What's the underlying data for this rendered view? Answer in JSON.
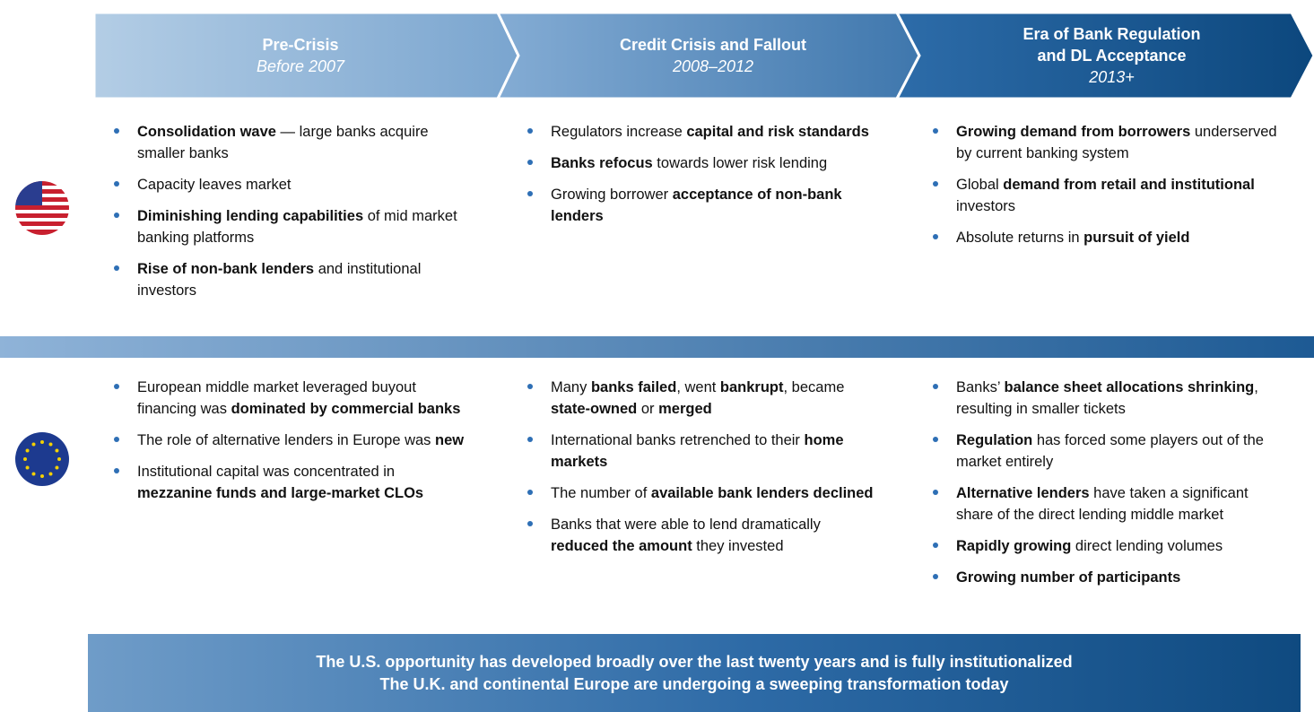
{
  "phases": [
    {
      "title": [
        "Pre-Crisis"
      ],
      "period": "Before 2007"
    },
    {
      "title": [
        "Credit Crisis and Fallout"
      ],
      "period": "2008–2012"
    },
    {
      "title": [
        "Era of Bank Regulation",
        "and DL Acceptance"
      ],
      "period": "2013+"
    }
  ],
  "regions": [
    {
      "columns": [
        [
          [
            {
              "text": "Consolidation wave",
              "bold": true
            },
            {
              "text": " — large banks acquire smaller banks"
            }
          ],
          [
            {
              "text": "Capacity leaves market"
            }
          ],
          [
            {
              "text": "Diminishing lending capabilities",
              "bold": true
            },
            {
              "text": " of mid market banking platforms"
            }
          ],
          [
            {
              "text": "Rise of non-bank lenders",
              "bold": true
            },
            {
              "text": " and institutional investors"
            }
          ]
        ],
        [
          [
            {
              "text": "Regulators increase "
            },
            {
              "text": "capital and risk standards",
              "bold": true
            }
          ],
          [
            {
              "text": "Banks refocus",
              "bold": true
            },
            {
              "text": " towards lower risk lending"
            }
          ],
          [
            {
              "text": "Growing borrower "
            },
            {
              "text": "acceptance of non-bank lenders",
              "bold": true
            }
          ]
        ],
        [
          [
            {
              "text": "Growing demand from borrowers",
              "bold": true
            },
            {
              "text": " underserved by current banking system"
            }
          ],
          [
            {
              "text": "Global "
            },
            {
              "text": "demand from retail and institutional",
              "bold": true
            },
            {
              "text": " investors"
            }
          ],
          [
            {
              "text": "Absolute returns in "
            },
            {
              "text": "pursuit of yield",
              "bold": true
            }
          ]
        ]
      ]
    },
    {
      "columns": [
        [
          [
            {
              "text": "European middle market leveraged buyout financing was "
            },
            {
              "text": "dominated by commercial banks",
              "bold": true
            }
          ],
          [
            {
              "text": "The role of alternative lenders in Europe was "
            },
            {
              "text": "new",
              "bold": true
            }
          ],
          [
            {
              "text": "Institutional capital was concentrated in "
            },
            {
              "text": "mezzanine funds and large-market CLOs",
              "bold": true
            }
          ]
        ],
        [
          [
            {
              "text": "Many "
            },
            {
              "text": "banks failed",
              "bold": true
            },
            {
              "text": ", went "
            },
            {
              "text": "bankrupt",
              "bold": true
            },
            {
              "text": ", became "
            },
            {
              "text": "state-owned",
              "bold": true
            },
            {
              "text": " or "
            },
            {
              "text": "merged",
              "bold": true
            }
          ],
          [
            {
              "text": "International banks retrenched to their "
            },
            {
              "text": "home markets",
              "bold": true
            }
          ],
          [
            {
              "text": "The number of "
            },
            {
              "text": "available bank lenders declined",
              "bold": true
            }
          ],
          [
            {
              "text": "Banks that were able to lend dramatically "
            },
            {
              "text": "reduced the amount",
              "bold": true
            },
            {
              "text": " they invested"
            }
          ]
        ],
        [
          [
            {
              "text": "Banks’ "
            },
            {
              "text": "balance sheet allocations shrinking",
              "bold": true
            },
            {
              "text": ", resulting in smaller tickets"
            }
          ],
          [
            {
              "text": "Regulation",
              "bold": true
            },
            {
              "text": " has forced some players out of the market entirely"
            }
          ],
          [
            {
              "text": "Alternative lenders",
              "bold": true
            },
            {
              "text": " have taken a significant share of the direct lending middle market"
            }
          ],
          [
            {
              "text": "Rapidly growing",
              "bold": true
            },
            {
              "text": " direct lending volumes"
            }
          ],
          [
            {
              "text": "Growing number of participants",
              "bold": true
            }
          ]
        ]
      ]
    }
  ],
  "footer": [
    "The U.S. opportunity has developed broadly over the last twenty years and is fully institutionalized",
    "The U.K. and continental Europe are undergoing a sweeping transformation today"
  ]
}
